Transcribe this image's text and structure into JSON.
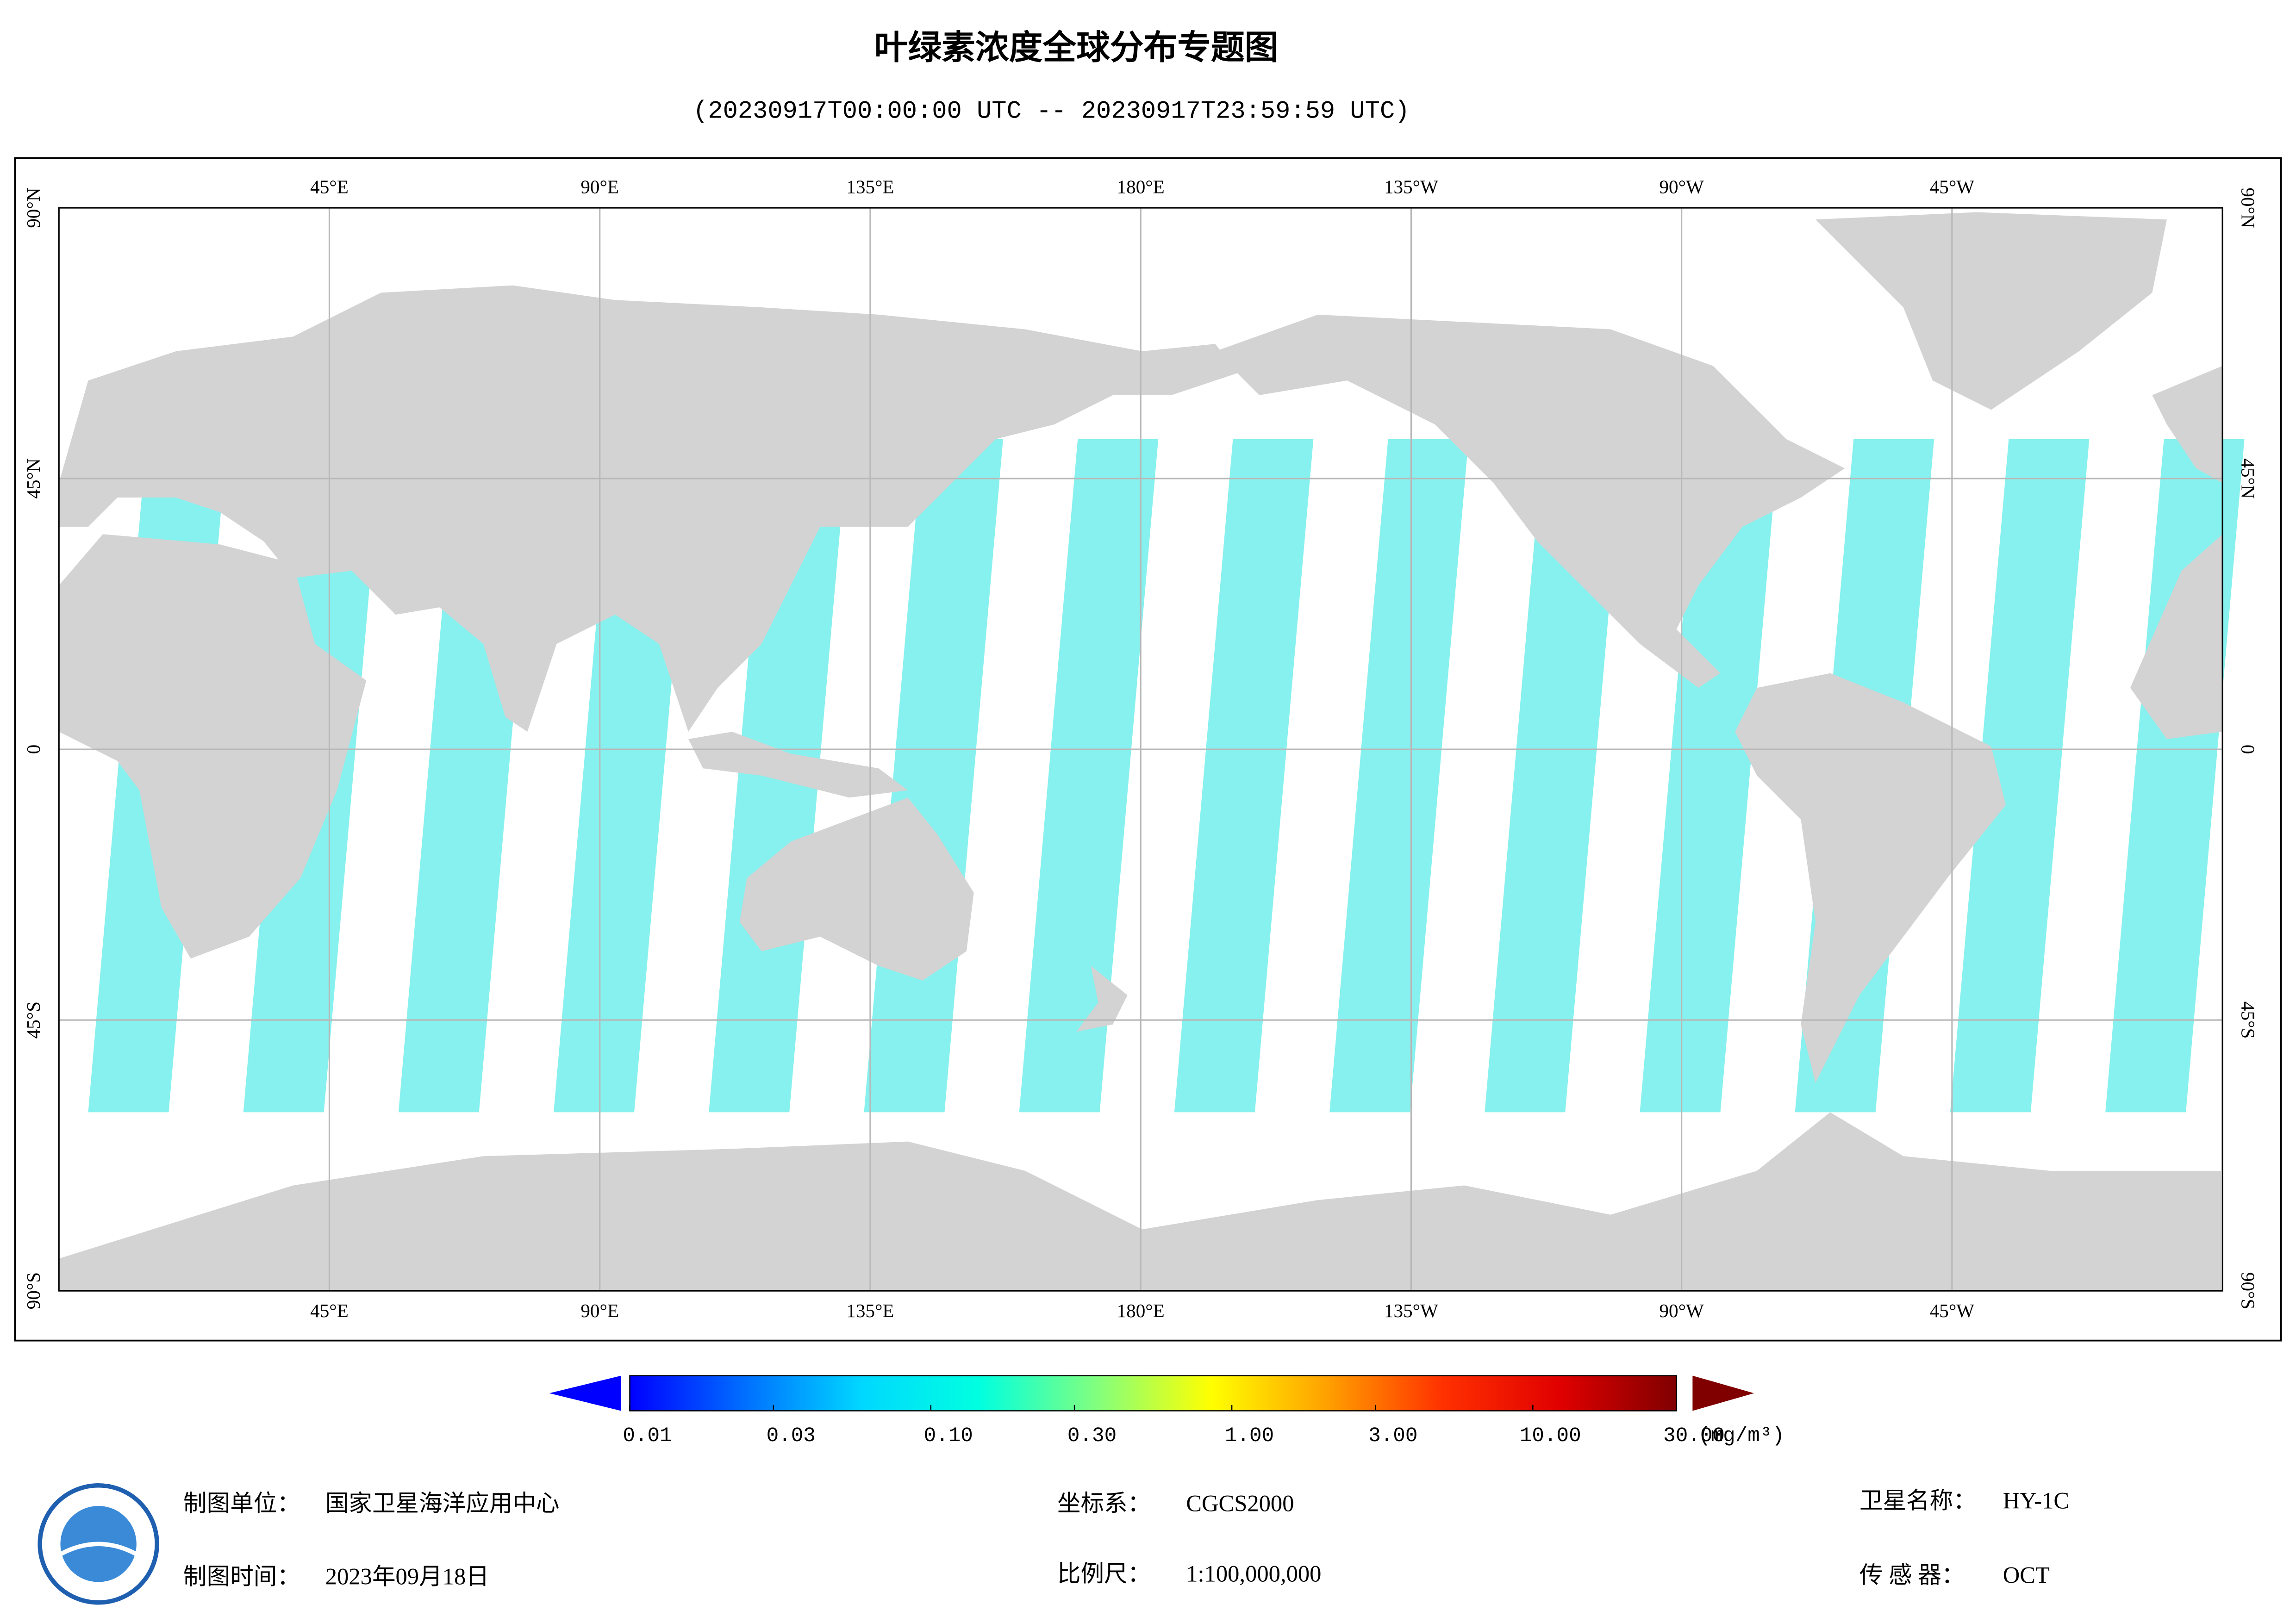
{
  "header": {
    "title": "叶绿素浓度全球分布专题图",
    "subtitle": "(20230917T00:00:00 UTC -- 20230917T23:59:59 UTC)"
  },
  "map": {
    "lonlim": [
      0,
      360
    ],
    "latlim": [
      -90,
      90
    ],
    "lon_ticks": [
      {
        "value": 45,
        "label": "45°E"
      },
      {
        "value": 90,
        "label": "90°E"
      },
      {
        "value": 135,
        "label": "135°E"
      },
      {
        "value": 180,
        "label": "180°E"
      },
      {
        "value": 225,
        "label": "135°W"
      },
      {
        "value": 270,
        "label": "90°W"
      },
      {
        "value": 315,
        "label": "45°W"
      }
    ],
    "lat_ticks": [
      {
        "value": 90,
        "label": "90°N"
      },
      {
        "value": 45,
        "label": "45°N"
      },
      0,
      {
        "value": -45,
        "label": "45°S"
      },
      {
        "value": -90,
        "label": "90°S"
      }
    ]
  },
  "colorbar": {
    "scale": "log",
    "range": [
      0.01,
      30
    ],
    "colors": [
      "#0000ff",
      "#0070ff",
      "#00d8ff",
      "#00ffe0",
      "#80ff80",
      "#ffff00",
      "#ffa000",
      "#ff3000",
      "#e00000",
      "#800000"
    ],
    "ticks": [
      {
        "value": 0.01,
        "label": "0.01"
      },
      {
        "value": 0.03,
        "label": "0.03"
      },
      {
        "value": 0.1,
        "label": "0.10"
      },
      {
        "value": 0.3,
        "label": "0.30"
      },
      {
        "value": 1,
        "label": "1.00"
      },
      {
        "value": 3,
        "label": "3.00"
      },
      {
        "value": 10,
        "label": "10.00"
      },
      {
        "value": 30,
        "label": "30.00"
      }
    ],
    "unit": "(mg/m³)"
  },
  "footer": {
    "unit_label": "制图单位：",
    "unit_value": "国家卫星海洋应用中心",
    "date_label": "制图时间：",
    "date_value": "2023年09月18日",
    "crs_label": "坐标系：",
    "crs_value": "CGCS2000",
    "scale_label": "比例尺：",
    "scale_value": "1:100,000,000",
    "satellite_label": "卫星名称：",
    "satellite_value": "HY-1C",
    "sensor_label": "传 感 器：",
    "sensor_value": "OCT"
  }
}
